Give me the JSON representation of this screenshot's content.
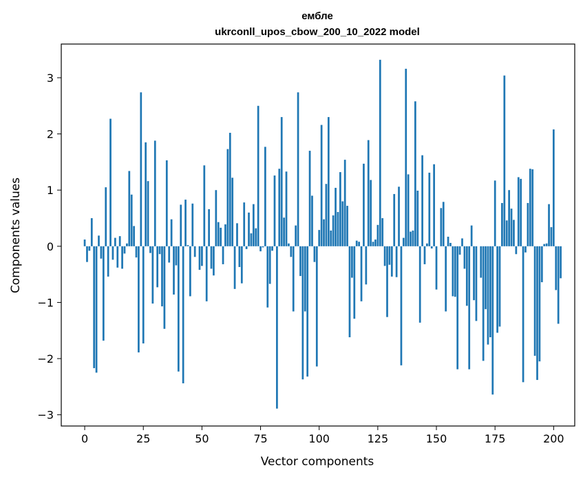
{
  "chart_data": {
    "type": "bar",
    "title_line1": "ембле",
    "title_line2": "ukrconll_upos_cbow_200_10_2022 model",
    "xlabel": "Vector components",
    "ylabel": "Components values",
    "xlim": [
      -10,
      209
    ],
    "ylim": [
      -3.2,
      3.6
    ],
    "x_ticks": [
      0,
      25,
      50,
      75,
      100,
      125,
      150,
      175,
      200
    ],
    "y_ticks": [
      -3,
      -2,
      -1,
      0,
      1,
      2,
      3
    ],
    "y_tick_labels": [
      "−3",
      "−2",
      "−1",
      "0",
      "1",
      "2",
      "3"
    ],
    "grid": false,
    "bar_color": "#1f77b4",
    "values": [
      0.12,
      -0.28,
      -0.08,
      0.5,
      -2.17,
      -2.25,
      0.19,
      -0.22,
      -1.68,
      1.05,
      -0.54,
      2.27,
      -0.24,
      0.15,
      -0.38,
      0.18,
      -0.4,
      -0.13,
      0.05,
      1.34,
      0.92,
      0.36,
      -0.2,
      -1.89,
      2.74,
      -1.73,
      1.85,
      1.16,
      -0.12,
      -1.02,
      1.88,
      -0.73,
      -0.14,
      -1.07,
      -1.47,
      1.53,
      -0.29,
      0.48,
      -0.86,
      -0.34,
      -2.23,
      0.74,
      -2.44,
      0.83,
      0.02,
      -0.89,
      0.76,
      -0.19,
      0.0,
      -0.42,
      -0.35,
      1.44,
      -0.98,
      0.66,
      -0.4,
      -0.52,
      1.0,
      0.43,
      0.33,
      -0.32,
      0.39,
      1.73,
      2.02,
      1.22,
      -0.76,
      0.41,
      -0.37,
      -0.66,
      0.78,
      -0.05,
      0.6,
      0.23,
      0.75,
      0.32,
      2.5,
      -0.09,
      -0.02,
      1.77,
      -1.09,
      -0.67,
      -0.08,
      1.26,
      -2.89,
      1.38,
      2.3,
      0.51,
      1.33,
      0.05,
      -0.19,
      -1.16,
      0.37,
      2.74,
      -0.53,
      -2.37,
      -1.16,
      -2.32,
      1.7,
      0.9,
      -0.28,
      -2.14,
      0.29,
      2.16,
      0.48,
      1.11,
      2.3,
      0.28,
      0.55,
      1.04,
      0.61,
      1.32,
      0.8,
      1.54,
      0.72,
      -1.62,
      -0.56,
      -1.29,
      0.1,
      0.08,
      -0.98,
      1.47,
      -0.68,
      1.89,
      1.18,
      0.08,
      0.12,
      0.38,
      3.32,
      0.5,
      -0.35,
      -1.26,
      -0.33,
      -0.54,
      0.93,
      -0.55,
      1.06,
      -2.12,
      0.15,
      3.16,
      1.28,
      0.26,
      0.28,
      2.58,
      0.99,
      -1.36,
      1.62,
      -0.32,
      0.05,
      1.31,
      -0.04,
      1.46,
      -0.77,
      0.0,
      0.68,
      0.79,
      -1.16,
      0.17,
      0.06,
      -0.89,
      -0.9,
      -2.19,
      -0.15,
      0.14,
      -0.4,
      -1.06,
      -2.19,
      0.37,
      -0.96,
      -1.33,
      0.0,
      -0.56,
      -2.04,
      -1.12,
      -1.75,
      -1.62,
      -2.64,
      1.17,
      -1.54,
      -1.43,
      0.77,
      3.04,
      0.46,
      1.0,
      0.67,
      0.47,
      -0.14,
      1.23,
      1.2,
      -2.42,
      -0.11,
      0.77,
      1.38,
      1.37,
      -1.95,
      -2.38,
      -2.05,
      -0.64,
      0.04,
      0.05,
      0.75,
      0.34,
      2.08,
      -0.78,
      -1.38,
      -0.57
    ]
  }
}
